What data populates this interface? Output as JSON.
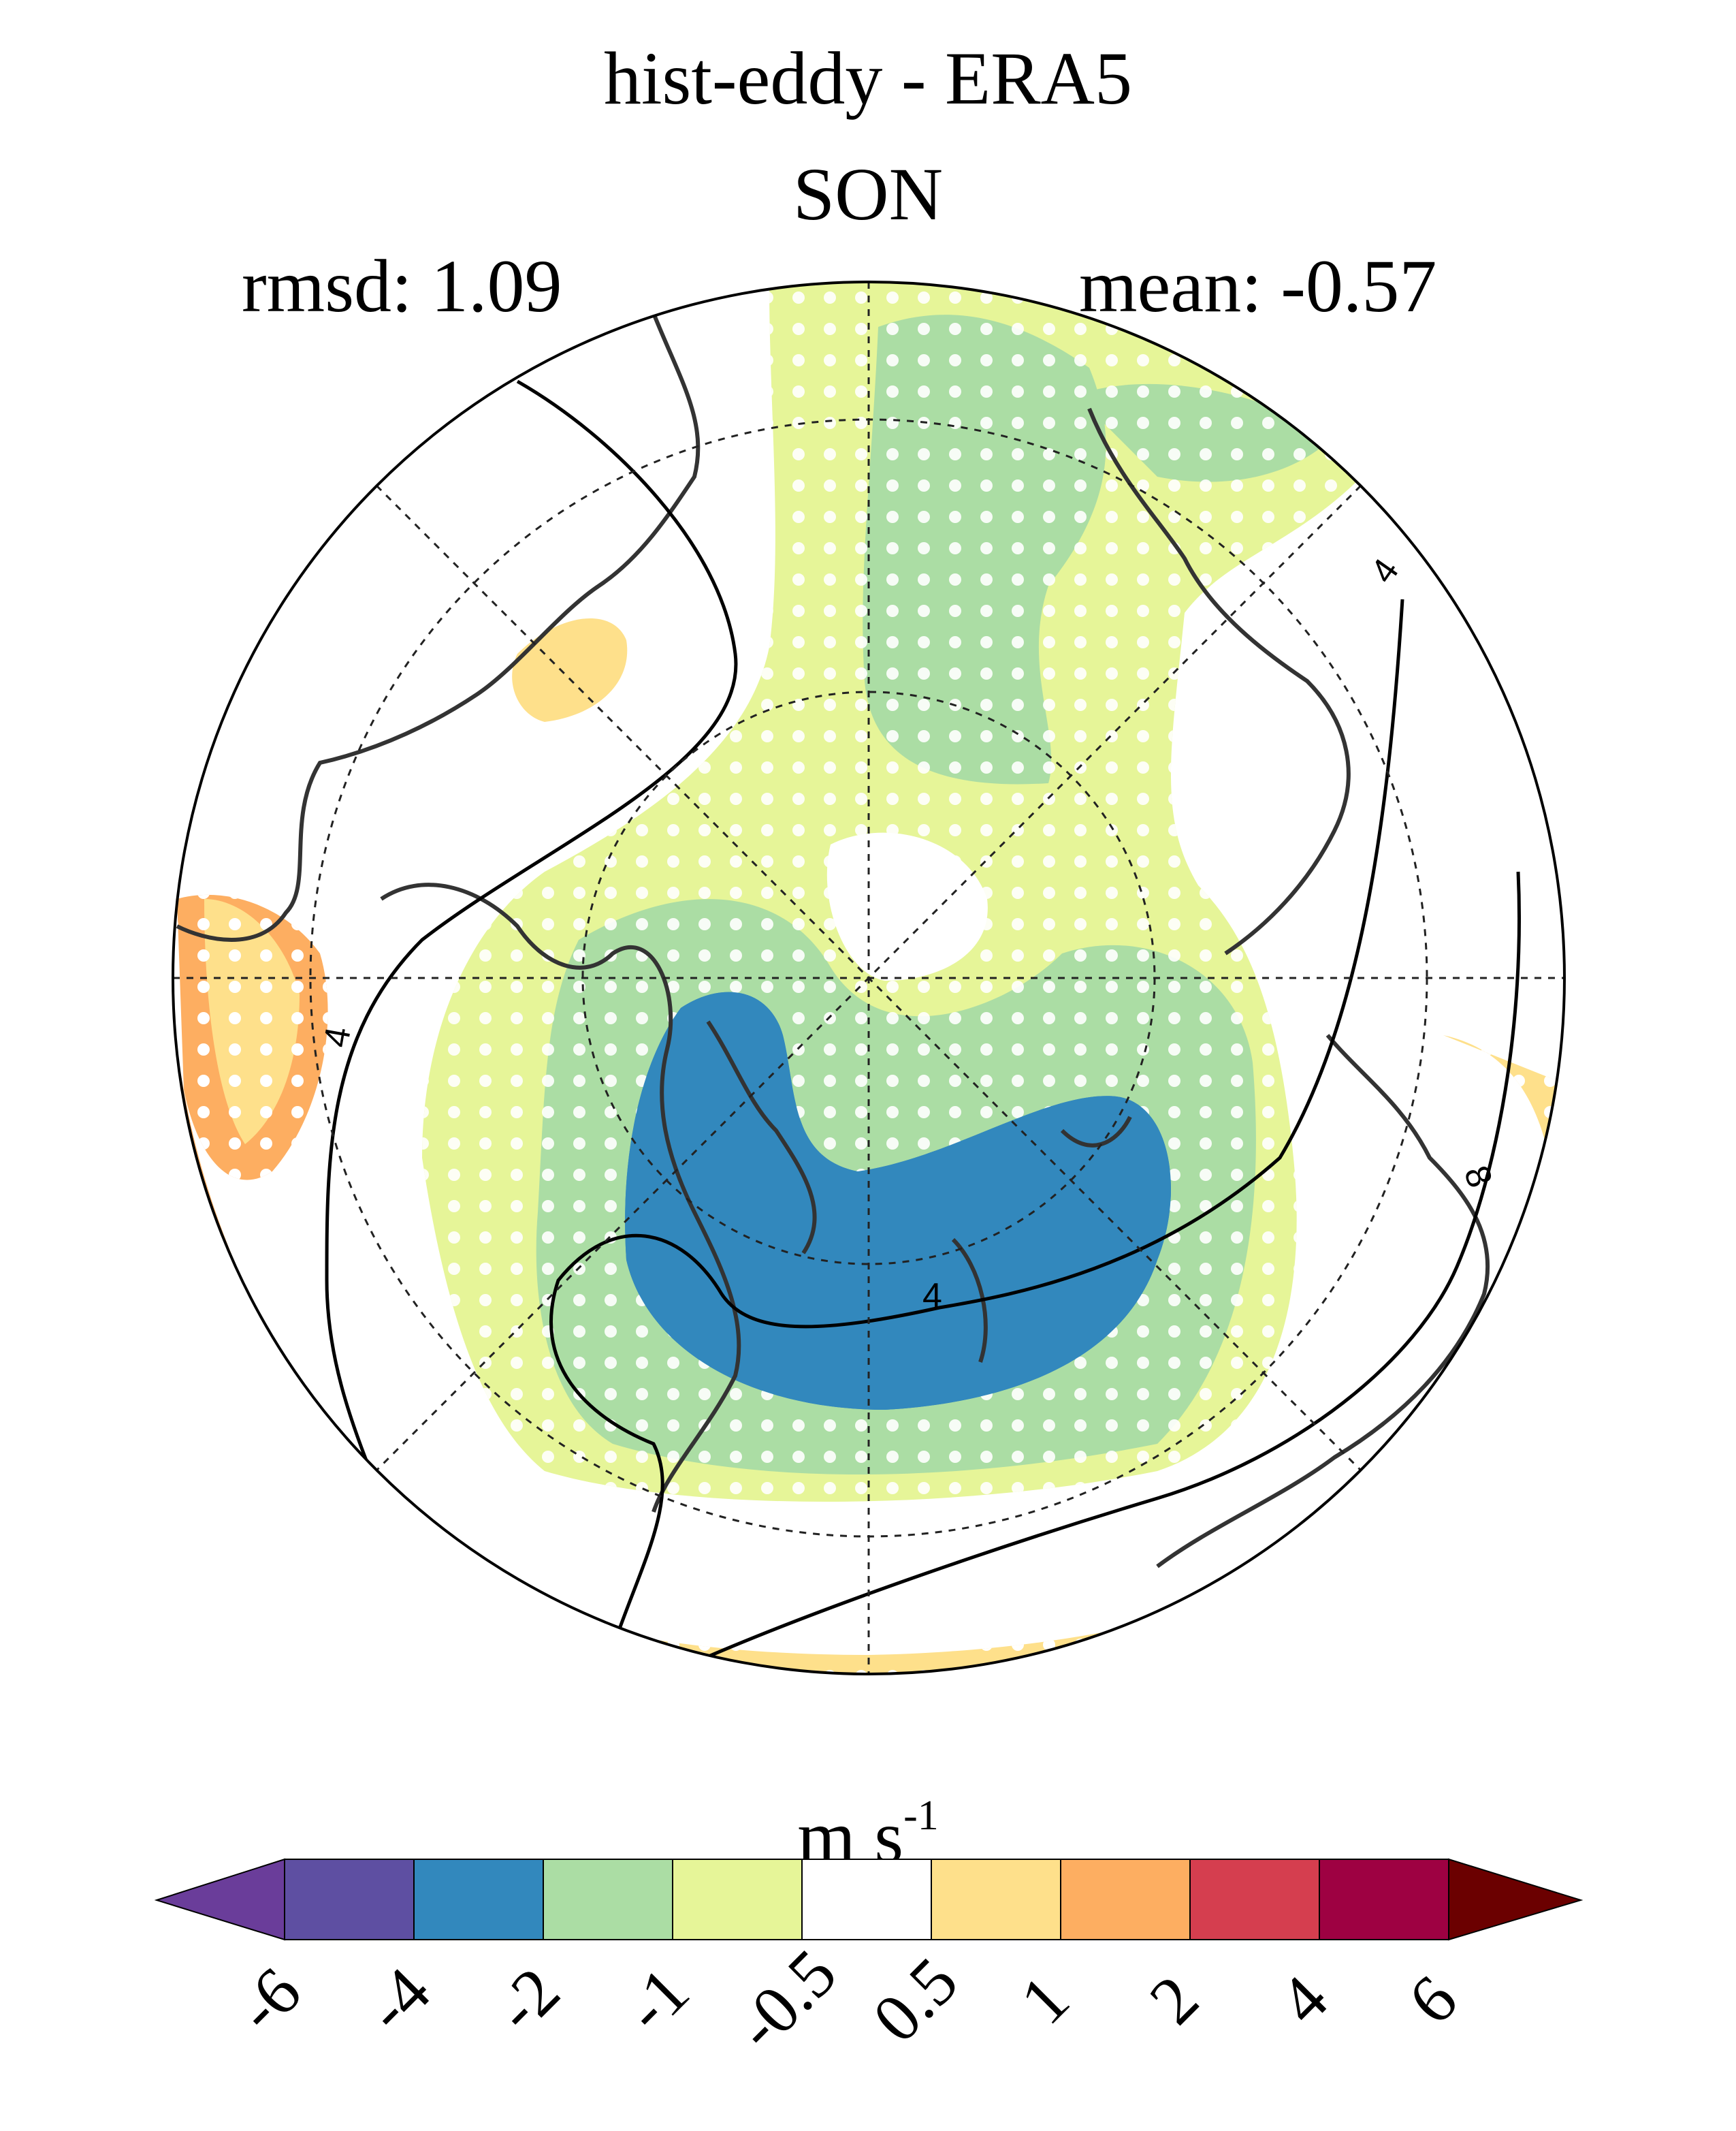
{
  "header": {
    "title": "hist-eddy - ERA5",
    "subtitle": "SON",
    "rmsd": "rmsd: 1.09",
    "mean": "mean: -0.57"
  },
  "map": {
    "projection": "north-polar-stereographic",
    "contour_labels": [
      "4",
      "4",
      "4",
      "8"
    ],
    "stippling": "white dots"
  },
  "colorbar": {
    "units": "m s",
    "units_exponent": "-1",
    "ticks": [
      "-6",
      "-4",
      "-2",
      "-1",
      "-0.5",
      "0.5",
      "1",
      "2",
      "4",
      "6"
    ],
    "colors": [
      "#6a3d9a",
      "#5e4fa2",
      "#3288bd",
      "#abdda4",
      "#e6f598",
      "#ffffff",
      "#fee08b",
      "#fdae61",
      "#d53e4f",
      "#9e0142",
      "#6b0000"
    ]
  }
}
